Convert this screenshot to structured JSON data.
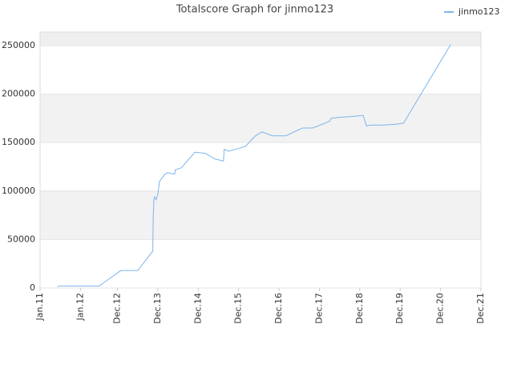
{
  "chart_data": {
    "type": "line",
    "title": "Totalscore Graph for jinmo123",
    "legend": "top-right",
    "xlim": [
      0,
      131
    ],
    "xticks": [
      {
        "value": 0,
        "label": "Jan.11"
      },
      {
        "value": 12,
        "label": "Jan.12"
      },
      {
        "value": 23,
        "label": "Dec.12"
      },
      {
        "value": 35,
        "label": "Dec.13"
      },
      {
        "value": 47,
        "label": "Dec.14"
      },
      {
        "value": 59,
        "label": "Dec.15"
      },
      {
        "value": 71,
        "label": "Dec.16"
      },
      {
        "value": 83,
        "label": "Dec.17"
      },
      {
        "value": 95,
        "label": "Dec.18"
      },
      {
        "value": 107,
        "label": "Dec.19"
      },
      {
        "value": 119,
        "label": "Dec.20"
      },
      {
        "value": 131,
        "label": "Dec.21"
      }
    ],
    "ylim": [
      0,
      264000
    ],
    "yticks": [
      0,
      50000,
      100000,
      150000,
      200000,
      250000
    ],
    "grid": true,
    "series": [
      {
        "name": "jinmo123",
        "color": "#7cb5ec",
        "x": [
          5.2,
          5.5,
          17.5,
          24,
          29,
          33.5,
          33.6,
          33.8,
          34,
          34.5,
          35,
          35.5,
          37,
          38,
          39,
          40,
          40.2,
          42,
          46,
          49,
          52,
          54.5,
          54.7,
          56,
          59,
          61,
          64,
          66,
          69,
          73,
          78,
          81,
          84,
          86,
          86.5,
          89,
          93,
          96,
          97,
          98,
          102,
          106,
          108,
          122
        ],
        "values": [
          1000,
          2000,
          2000,
          18000,
          18000,
          38000,
          70000,
          90000,
          94000,
          91000,
          97000,
          110000,
          117000,
          119000,
          118000,
          117500,
          122000,
          124000,
          140000,
          139000,
          133000,
          131000,
          143000,
          141000,
          144000,
          146000,
          157000,
          161000,
          157000,
          157000,
          165000,
          165000,
          169000,
          172000,
          175000,
          176000,
          177000,
          178000,
          167000,
          168000,
          168000,
          169000,
          170000,
          251000
        ]
      }
    ]
  }
}
